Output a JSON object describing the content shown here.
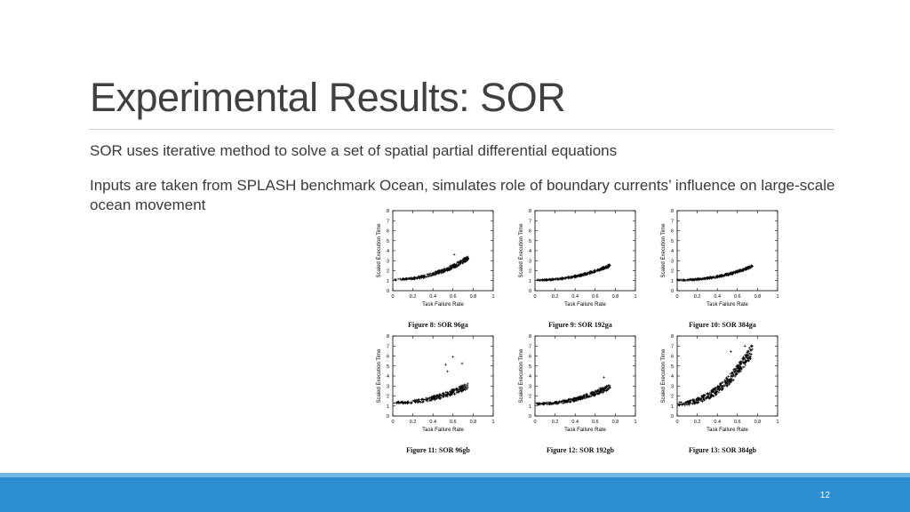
{
  "slide": {
    "title": "Experimental Results: SOR",
    "bullets": [
      "SOR uses iterative method to solve a set of spatial partial differential equations",
      "Inputs are taken from SPLASH benchmark Ocean, simulates role of boundary currents’ influence on large-scale ocean movement"
    ],
    "page_number": "12",
    "colors": {
      "footer": "#2e8fd0",
      "footer_stripe": "#6fb8e6",
      "title": "#404040"
    }
  },
  "chart_data": [
    {
      "type": "scatter",
      "caption": "Figure 8: SOR 96ga",
      "xlabel": "Task Failure Rate",
      "ylabel": "Scaled Execution Time",
      "xlim": [
        0,
        1
      ],
      "ylim": [
        0,
        8
      ],
      "xticks": [
        "0",
        "0.2",
        "0.4",
        "0.6",
        "0.8",
        "1"
      ],
      "yticks": [
        "0",
        "1",
        "2",
        "3",
        "4",
        "5",
        "6",
        "7",
        "8"
      ],
      "marker": "plus",
      "series": [
        {
          "x_range": [
            0.0,
            0.75
          ],
          "y_start": 1.1,
          "y_end": 3.2,
          "spread": 0.35,
          "max_outlier": 4.2,
          "n": 260
        }
      ]
    },
    {
      "type": "scatter",
      "caption": "Figure 9: SOR 192ga",
      "xlabel": "Task Failure Rate",
      "ylabel": "Scaled Execution Time",
      "xlim": [
        0,
        1
      ],
      "ylim": [
        0,
        8
      ],
      "xticks": [
        "0",
        "0.2",
        "0.4",
        "0.6",
        "0.8",
        "1"
      ],
      "yticks": [
        "0",
        "1",
        "2",
        "3",
        "4",
        "5",
        "6",
        "7",
        "8"
      ],
      "marker": "plus",
      "series": [
        {
          "x_range": [
            0.0,
            0.75
          ],
          "y_start": 1.05,
          "y_end": 2.5,
          "spread": 0.2,
          "max_outlier": 2.8,
          "n": 260
        }
      ]
    },
    {
      "type": "scatter",
      "caption": "Figure 10: SOR 384ga",
      "xlabel": "Task Failure Rate",
      "ylabel": "Scaled Execution Time",
      "xlim": [
        0,
        1
      ],
      "ylim": [
        0,
        8
      ],
      "xticks": [
        "0",
        "0.2",
        "0.4",
        "0.6",
        "0.8",
        "1"
      ],
      "yticks": [
        "0",
        "1",
        "2",
        "3",
        "4",
        "5",
        "6",
        "7",
        "8"
      ],
      "marker": "plus",
      "series": [
        {
          "x_range": [
            0.0,
            0.75
          ],
          "y_start": 1.05,
          "y_end": 2.4,
          "spread": 0.2,
          "max_outlier": 3.0,
          "n": 260
        }
      ]
    },
    {
      "type": "scatter",
      "caption": "Figure 11: SOR 96gb",
      "xlabel": "Task Failure Rate",
      "ylabel": "Scaled Execution Time",
      "xlim": [
        0,
        1
      ],
      "ylim": [
        0,
        8
      ],
      "xticks": [
        "0",
        "0.2",
        "0.4",
        "0.6",
        "0.8",
        "1"
      ],
      "yticks": [
        "0",
        "1",
        "2",
        "3",
        "4",
        "5",
        "6",
        "7",
        "8"
      ],
      "marker": "plus",
      "series": [
        {
          "x_range": [
            0.0,
            0.75
          ],
          "y_start": 1.3,
          "y_end": 3.0,
          "spread": 0.5,
          "max_outlier": 6.0,
          "n": 260
        }
      ]
    },
    {
      "type": "scatter",
      "caption": "Figure 12: SOR 192gb",
      "xlabel": "Task Failure Rate",
      "ylabel": "Scaled Execution Time",
      "xlim": [
        0,
        1
      ],
      "ylim": [
        0,
        8
      ],
      "xticks": [
        "0",
        "0.2",
        "0.4",
        "0.6",
        "0.8",
        "1"
      ],
      "yticks": [
        "0",
        "1",
        "2",
        "3",
        "4",
        "5",
        "6",
        "7",
        "8"
      ],
      "marker": "plus",
      "series": [
        {
          "x_range": [
            0.0,
            0.75
          ],
          "y_start": 1.2,
          "y_end": 2.9,
          "spread": 0.4,
          "max_outlier": 4.0,
          "n": 300
        }
      ]
    },
    {
      "type": "scatter",
      "caption": "Figure 13: SOR 384gb",
      "xlabel": "Task Failure Rate",
      "ylabel": "Scaled Execution Time",
      "xlim": [
        0,
        1
      ],
      "ylim": [
        0,
        8
      ],
      "xticks": [
        "0",
        "0.2",
        "0.4",
        "0.6",
        "0.8",
        "1"
      ],
      "yticks": [
        "0",
        "1",
        "2",
        "3",
        "4",
        "5",
        "6",
        "7",
        "8"
      ],
      "marker": "plus",
      "series": [
        {
          "x_range": [
            0.0,
            0.75
          ],
          "y_start": 1.2,
          "y_end": 6.5,
          "spread": 1.0,
          "max_outlier": 8.0,
          "n": 360
        }
      ]
    }
  ]
}
